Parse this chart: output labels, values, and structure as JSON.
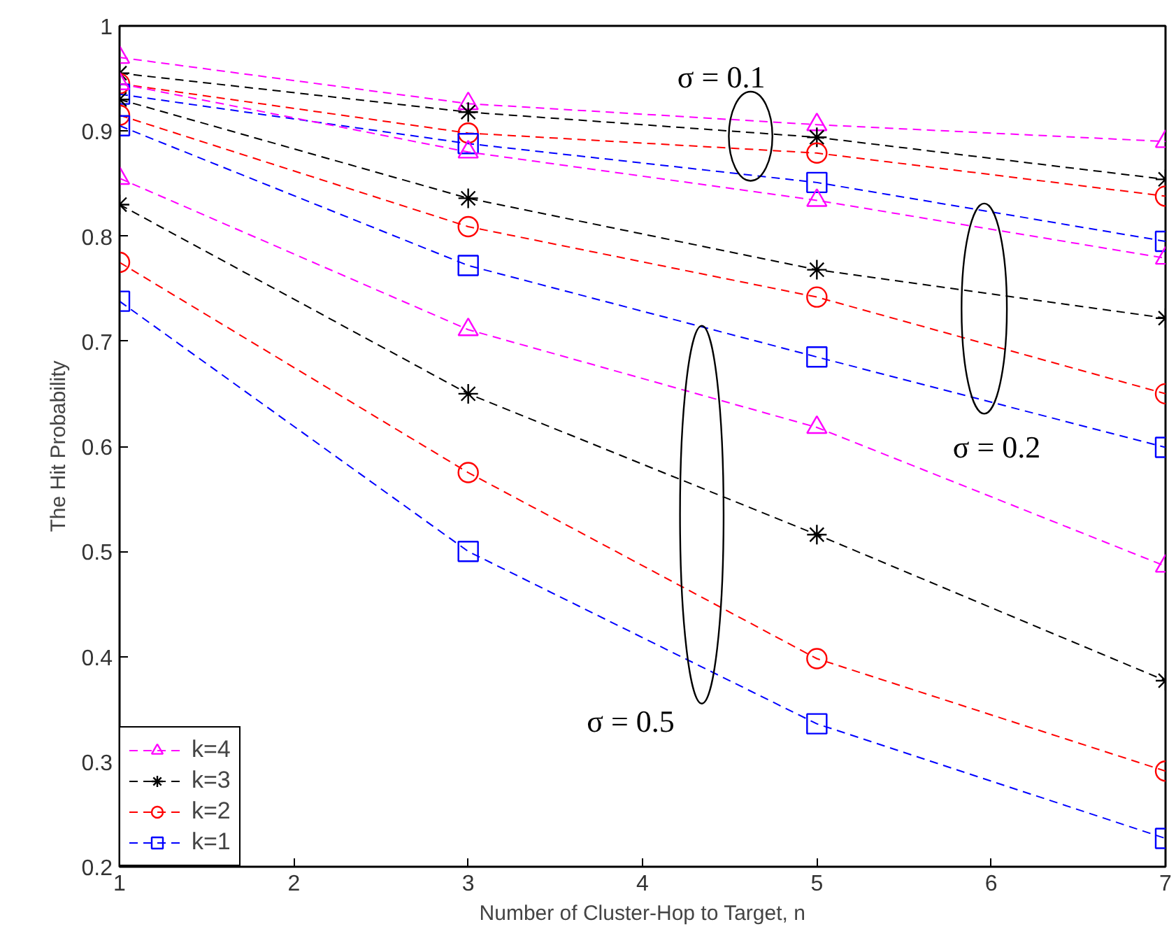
{
  "chart_data": {
    "type": "line",
    "xlabel": "Number of Cluster-Hop to Target, n",
    "ylabel": "The Hit Probability",
    "x": [
      1,
      3,
      5,
      7
    ],
    "xlim": [
      1,
      7
    ],
    "ylim": [
      0.2,
      1
    ],
    "xticks": [
      1,
      2,
      3,
      4,
      5,
      6,
      7
    ],
    "yticks": [
      0.2,
      0.3,
      0.4,
      0.5,
      0.6,
      0.7,
      0.8,
      0.9,
      1
    ],
    "grid": false,
    "legend": "bottom left",
    "line_style": "dashed",
    "series": [
      {
        "name": "k=4",
        "color": "#ff00ff",
        "marker": "triangle",
        "values": [
          0.97,
          0.926,
          0.906,
          0.89
        ]
      },
      {
        "name": "k=3",
        "color": "#000000",
        "marker": "cross",
        "values": [
          0.955,
          0.918,
          0.894,
          0.854
        ]
      },
      {
        "name": "k=2",
        "color": "#ff0000",
        "marker": "circle",
        "values": [
          0.945,
          0.898,
          0.879,
          0.838
        ]
      },
      {
        "name": "k=1",
        "color": "#0000ff",
        "marker": "square",
        "values": [
          0.935,
          0.888,
          0.851,
          0.795
        ]
      },
      {
        "color": "#ff00ff",
        "marker": "triangle",
        "values": [
          0.945,
          0.88,
          0.834,
          0.779
        ]
      },
      {
        "color": "#000000",
        "marker": "cross",
        "values": [
          0.93,
          0.836,
          0.768,
          0.722
        ]
      },
      {
        "color": "#ff0000",
        "marker": "circle",
        "values": [
          0.915,
          0.809,
          0.742,
          0.65
        ]
      },
      {
        "color": "#0000ff",
        "marker": "square",
        "values": [
          0.905,
          0.772,
          0.685,
          0.599
        ]
      },
      {
        "color": "#ff00ff",
        "marker": "triangle",
        "values": [
          0.855,
          0.711,
          0.618,
          0.486
        ]
      },
      {
        "color": "#000000",
        "marker": "cross",
        "values": [
          0.83,
          0.65,
          0.516,
          0.377
        ]
      },
      {
        "color": "#ff0000",
        "marker": "circle",
        "values": [
          0.775,
          0.575,
          0.398,
          0.291
        ]
      },
      {
        "color": "#0000ff",
        "marker": "square",
        "values": [
          0.738,
          0.5,
          0.336,
          0.227
        ]
      }
    ],
    "annotations": [
      "σ = 0.1",
      "σ = 0.2",
      "σ = 0.5"
    ]
  }
}
